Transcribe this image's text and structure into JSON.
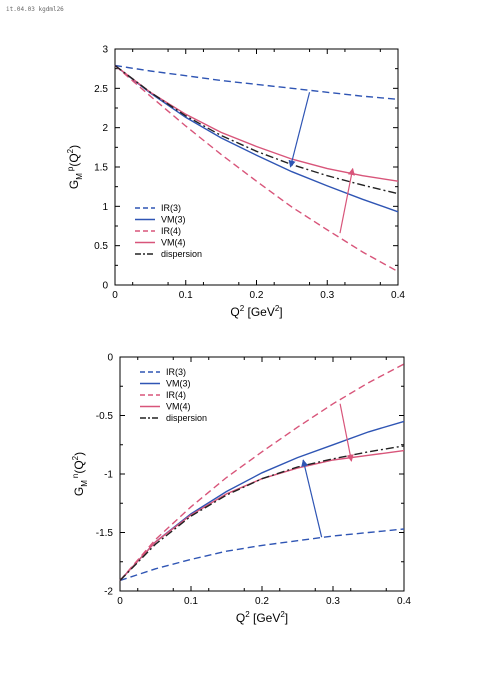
{
  "header": {
    "text": "it.04.03 kgdml26"
  },
  "colors": {
    "blue": "#2f55b4",
    "pink": "#d8557a",
    "black": "#222222"
  },
  "chart_data": [
    {
      "type": "line",
      "xlabel_main": "Q",
      "xlabel_sup": "2",
      "xlabel_units": " [GeV",
      "xlabel_units_sup": "2",
      "xlabel_end": "]",
      "ylabel_main": "G",
      "ylabel_sub": "M",
      "ylabel_sup": "p",
      "ylabel_arg": "(Q",
      "ylabel_arg_sup": "2",
      "ylabel_end": ")",
      "xlim": [
        0,
        0.4
      ],
      "ylim": [
        0,
        3
      ],
      "xticks": [
        "0",
        "0.1",
        "0.2",
        "0.3",
        "0.4"
      ],
      "xtick_values": [
        0,
        0.1,
        0.2,
        0.3,
        0.4
      ],
      "yticks": [
        "0",
        "0.5",
        "1",
        "1.5",
        "2",
        "2.5",
        "3"
      ],
      "ytick_values": [
        0,
        0.5,
        1,
        1.5,
        2,
        2.5,
        3
      ],
      "legend_position": "bottom-left",
      "series": [
        {
          "name": "IR(3)",
          "color": "blue",
          "dash": "dashed",
          "x": [
            0,
            0.05,
            0.1,
            0.15,
            0.2,
            0.25,
            0.3,
            0.35,
            0.4
          ],
          "y": [
            2.79,
            2.72,
            2.66,
            2.6,
            2.55,
            2.5,
            2.45,
            2.4,
            2.36
          ]
        },
        {
          "name": "VM(3)",
          "color": "blue",
          "dash": "solid",
          "x": [
            0,
            0.05,
            0.1,
            0.15,
            0.2,
            0.25,
            0.3,
            0.35,
            0.4
          ],
          "y": [
            2.79,
            2.44,
            2.13,
            1.87,
            1.65,
            1.44,
            1.26,
            1.09,
            0.93
          ]
        },
        {
          "name": "IR(4)",
          "color": "pink",
          "dash": "dashed",
          "x": [
            0,
            0.05,
            0.1,
            0.15,
            0.2,
            0.25,
            0.3,
            0.35,
            0.4
          ],
          "y": [
            2.79,
            2.4,
            2.02,
            1.66,
            1.32,
            0.99,
            0.7,
            0.42,
            0.17
          ]
        },
        {
          "name": "VM(4)",
          "color": "pink",
          "dash": "solid",
          "x": [
            0,
            0.05,
            0.1,
            0.15,
            0.2,
            0.25,
            0.3,
            0.35,
            0.4
          ],
          "y": [
            2.79,
            2.45,
            2.17,
            1.94,
            1.76,
            1.6,
            1.48,
            1.39,
            1.32
          ]
        },
        {
          "name": "dispersion",
          "color": "black",
          "dash": "dashdot",
          "x": [
            0,
            0.05,
            0.1,
            0.15,
            0.2,
            0.25,
            0.3,
            0.35,
            0.4
          ],
          "y": [
            2.79,
            2.45,
            2.15,
            1.9,
            1.7,
            1.53,
            1.39,
            1.27,
            1.16
          ]
        }
      ],
      "arrows": [
        {
          "color": "blue",
          "from": [
            0.275,
            2.45
          ],
          "to": [
            0.248,
            1.5
          ]
        },
        {
          "color": "pink",
          "from": [
            0.318,
            0.66
          ],
          "to": [
            0.336,
            1.48
          ]
        }
      ]
    },
    {
      "type": "line",
      "xlabel_main": "Q",
      "xlabel_sup": "2",
      "xlabel_units": " [GeV",
      "xlabel_units_sup": "2",
      "xlabel_end": "]",
      "ylabel_main": "G",
      "ylabel_sub": "M",
      "ylabel_sup": "n",
      "ylabel_arg": "(Q",
      "ylabel_arg_sup": "2",
      "ylabel_end": ")",
      "xlim": [
        0,
        0.4
      ],
      "ylim": [
        -2,
        0
      ],
      "xticks": [
        "0",
        "0.1",
        "0.2",
        "0.3",
        "0.4"
      ],
      "xtick_values": [
        0,
        0.1,
        0.2,
        0.3,
        0.4
      ],
      "yticks": [
        "-2",
        "-1.5",
        "-1",
        "-0.5",
        "0"
      ],
      "ytick_values": [
        -2,
        -1.5,
        -1,
        -0.5,
        0
      ],
      "legend_position": "top-left",
      "series": [
        {
          "name": "IR(3)",
          "color": "blue",
          "dash": "dashed",
          "x": [
            0,
            0.05,
            0.1,
            0.15,
            0.2,
            0.25,
            0.3,
            0.35,
            0.4
          ],
          "y": [
            -1.91,
            -1.81,
            -1.73,
            -1.66,
            -1.61,
            -1.57,
            -1.53,
            -1.5,
            -1.47
          ]
        },
        {
          "name": "VM(3)",
          "color": "blue",
          "dash": "solid",
          "x": [
            0,
            0.05,
            0.1,
            0.15,
            0.2,
            0.25,
            0.3,
            0.35,
            0.4
          ],
          "y": [
            -1.91,
            -1.58,
            -1.34,
            -1.15,
            -0.99,
            -0.86,
            -0.75,
            -0.64,
            -0.55
          ]
        },
        {
          "name": "IR(4)",
          "color": "pink",
          "dash": "dashed",
          "x": [
            0,
            0.05,
            0.1,
            0.15,
            0.2,
            0.25,
            0.3,
            0.35,
            0.4
          ],
          "y": [
            -1.91,
            -1.56,
            -1.28,
            -1.03,
            -0.81,
            -0.6,
            -0.4,
            -0.22,
            -0.06
          ]
        },
        {
          "name": "VM(4)",
          "color": "pink",
          "dash": "solid",
          "x": [
            0,
            0.05,
            0.1,
            0.15,
            0.2,
            0.25,
            0.3,
            0.35,
            0.4
          ],
          "y": [
            -1.91,
            -1.58,
            -1.35,
            -1.17,
            -1.04,
            -0.95,
            -0.88,
            -0.84,
            -0.8
          ]
        },
        {
          "name": "dispersion",
          "color": "black",
          "dash": "dashdot",
          "x": [
            0,
            0.05,
            0.1,
            0.15,
            0.2,
            0.25,
            0.3,
            0.35,
            0.4
          ],
          "y": [
            -1.91,
            -1.6,
            -1.36,
            -1.18,
            -1.04,
            -0.94,
            -0.87,
            -0.81,
            -0.76
          ]
        }
      ],
      "arrows": [
        {
          "color": "blue",
          "from": [
            0.284,
            -1.54
          ],
          "to": [
            0.258,
            -0.88
          ]
        },
        {
          "color": "pink",
          "from": [
            0.31,
            -0.4
          ],
          "to": [
            0.326,
            -0.89
          ]
        }
      ]
    }
  ]
}
